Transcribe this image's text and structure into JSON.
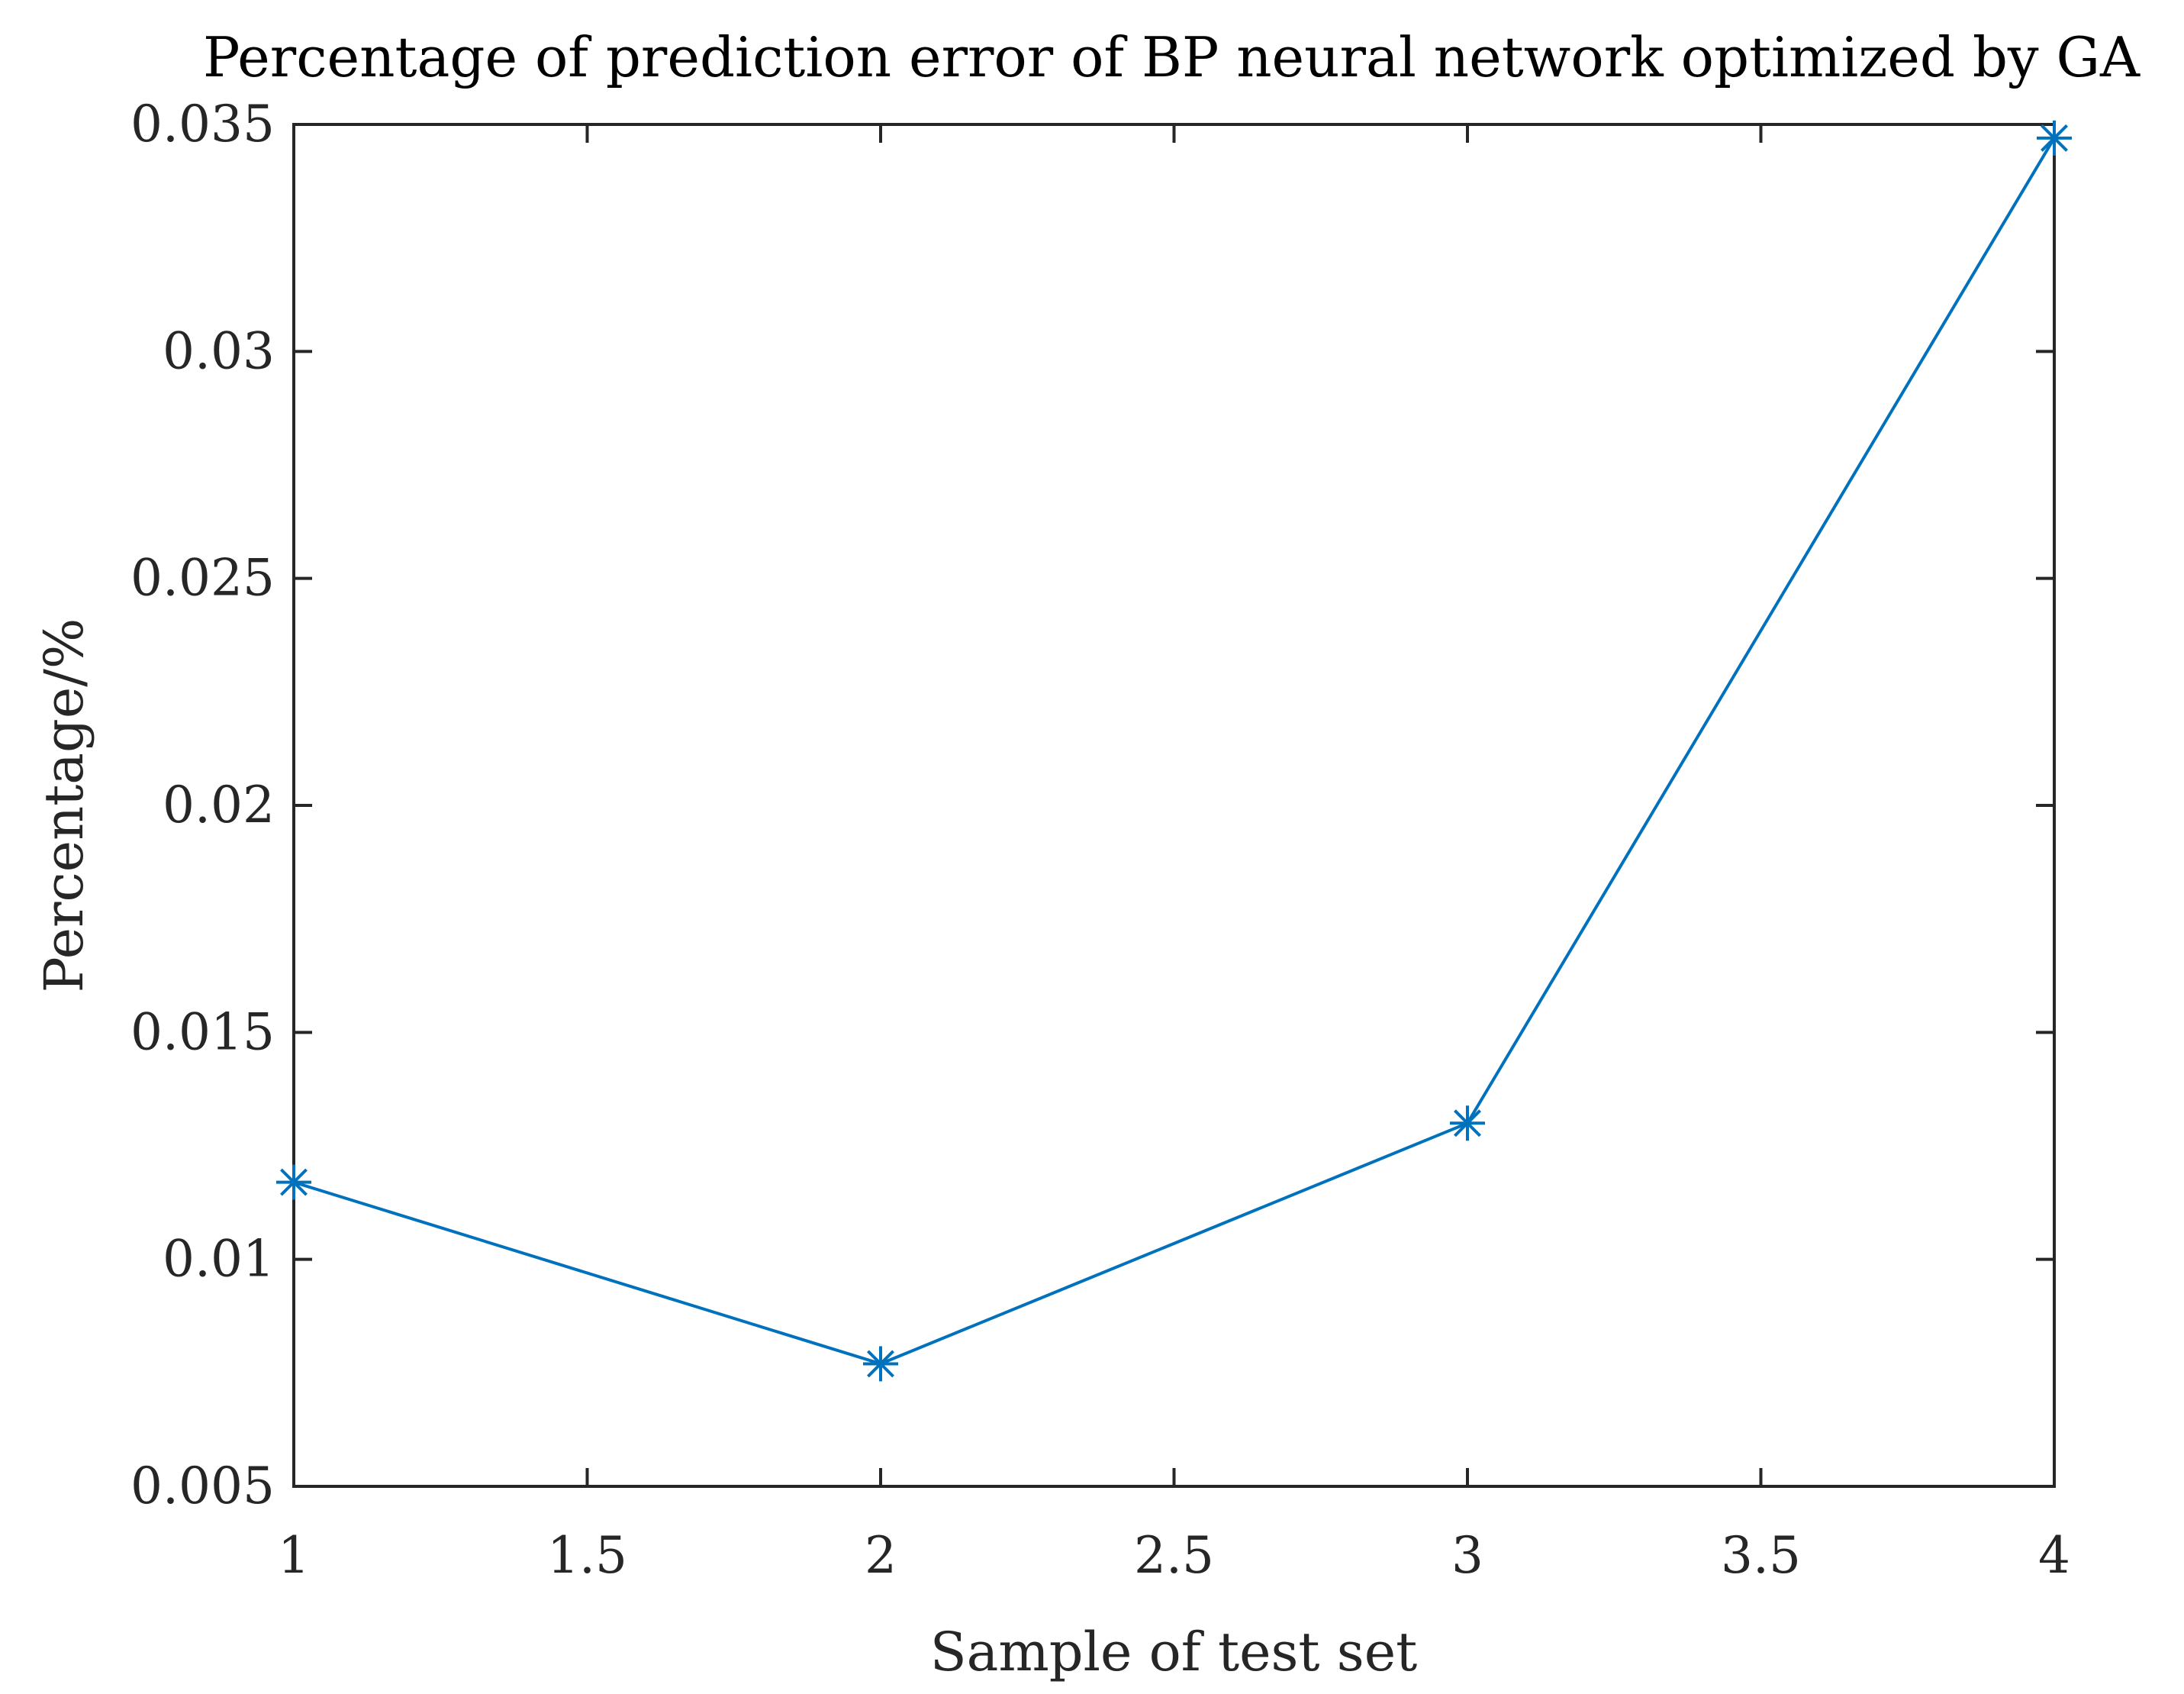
{
  "chart_data": {
    "type": "line",
    "title": "Percentage of prediction error of BP neural network optimized by GA",
    "xlabel": "Sample of test set",
    "ylabel": "Percentage/%",
    "xlim": [
      1,
      4
    ],
    "ylim": [
      0.005,
      0.035
    ],
    "x_ticks": [
      1,
      1.5,
      2,
      2.5,
      3,
      3.5,
      4
    ],
    "x_tick_labels": [
      "1",
      "1.5",
      "2",
      "2.5",
      "3",
      "3.5",
      "4"
    ],
    "y_ticks": [
      0.005,
      0.01,
      0.015,
      0.02,
      0.025,
      0.03,
      0.035
    ],
    "y_tick_labels": [
      "0.005",
      "0.01",
      "0.015",
      "0.02",
      "0.025",
      "0.03",
      "0.035"
    ],
    "grid": false,
    "legend": "none",
    "series": [
      {
        "x": [
          1,
          2,
          3,
          4
        ],
        "values": [
          0.0117,
          0.0077,
          0.013,
          0.0347
        ],
        "color": "#0072BD",
        "marker": "asterisk"
      }
    ]
  }
}
